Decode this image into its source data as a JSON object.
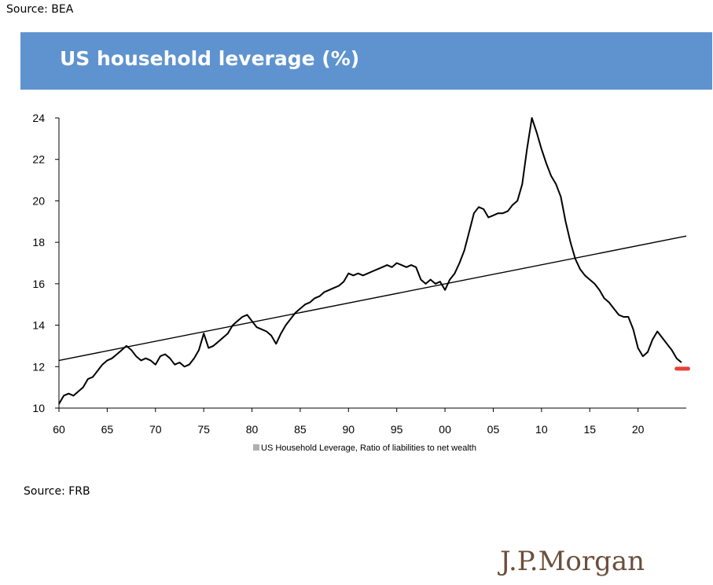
{
  "header": {
    "source_top": "Source: BEA",
    "title": "US household leverage (%)"
  },
  "footer": {
    "source_bottom": "Source: FRB",
    "logo": "J.P.Morgan"
  },
  "colors": {
    "banner": "#5f93cf",
    "series_line": "#000000",
    "trend_line": "#000000",
    "current_marker": "#e8403a",
    "logo": "#6b4e3b"
  },
  "chart_data": {
    "type": "line",
    "title": "",
    "xlabel": "",
    "ylabel": "",
    "xlim": [
      1960,
      2025
    ],
    "ylim": [
      10,
      24
    ],
    "x_ticks": [
      {
        "value": 1960,
        "label": "60"
      },
      {
        "value": 1965,
        "label": "65"
      },
      {
        "value": 1970,
        "label": "70"
      },
      {
        "value": 1975,
        "label": "75"
      },
      {
        "value": 1980,
        "label": "80"
      },
      {
        "value": 1985,
        "label": "85"
      },
      {
        "value": 1990,
        "label": "90"
      },
      {
        "value": 1995,
        "label": "95"
      },
      {
        "value": 2000,
        "label": "00"
      },
      {
        "value": 2005,
        "label": "05"
      },
      {
        "value": 2010,
        "label": "10"
      },
      {
        "value": 2015,
        "label": "15"
      },
      {
        "value": 2020,
        "label": "20"
      }
    ],
    "y_ticks": [
      10,
      12,
      14,
      16,
      18,
      20,
      22,
      24
    ],
    "grid": false,
    "legend": {
      "position": "bottom",
      "entries": [
        "US Household Leverage, Ratio of liabilities to net wealth"
      ]
    },
    "series": [
      {
        "name": "US Household Leverage, Ratio of liabilities to net wealth",
        "x": [
          1960.0,
          1960.5,
          1961.0,
          1961.5,
          1962.0,
          1962.5,
          1963.0,
          1963.5,
          1964.0,
          1964.5,
          1965.0,
          1965.5,
          1966.0,
          1966.5,
          1967.0,
          1967.5,
          1968.0,
          1968.5,
          1969.0,
          1969.5,
          1970.0,
          1970.5,
          1971.0,
          1971.5,
          1972.0,
          1972.5,
          1973.0,
          1973.5,
          1974.0,
          1974.5,
          1975.0,
          1975.5,
          1976.0,
          1976.5,
          1977.0,
          1977.5,
          1978.0,
          1978.5,
          1979.0,
          1979.5,
          1980.0,
          1980.5,
          1981.0,
          1981.5,
          1982.0,
          1982.5,
          1983.0,
          1983.5,
          1984.0,
          1984.5,
          1985.0,
          1985.5,
          1986.0,
          1986.5,
          1987.0,
          1987.5,
          1988.0,
          1988.5,
          1989.0,
          1989.5,
          1990.0,
          1990.5,
          1991.0,
          1991.5,
          1992.0,
          1992.5,
          1993.0,
          1993.5,
          1994.0,
          1994.5,
          1995.0,
          1995.5,
          1996.0,
          1996.5,
          1997.0,
          1997.5,
          1998.0,
          1998.5,
          1999.0,
          1999.5,
          2000.0,
          2000.5,
          2001.0,
          2001.5,
          2002.0,
          2002.5,
          2003.0,
          2003.5,
          2004.0,
          2004.5,
          2005.0,
          2005.5,
          2006.0,
          2006.5,
          2007.0,
          2007.5,
          2008.0,
          2008.5,
          2009.0,
          2009.5,
          2010.0,
          2010.5,
          2011.0,
          2011.5,
          2012.0,
          2012.5,
          2013.0,
          2013.5,
          2014.0,
          2014.5,
          2015.0,
          2015.5,
          2016.0,
          2016.5,
          2017.0,
          2017.5,
          2018.0,
          2018.5,
          2019.0,
          2019.5,
          2020.0,
          2020.5,
          2021.0,
          2021.5,
          2022.0,
          2022.5,
          2023.0,
          2023.5,
          2024.0,
          2024.5
        ],
        "values": [
          10.2,
          10.6,
          10.7,
          10.6,
          10.8,
          11.0,
          11.4,
          11.5,
          11.8,
          12.1,
          12.3,
          12.4,
          12.6,
          12.8,
          13.0,
          12.8,
          12.5,
          12.3,
          12.4,
          12.3,
          12.1,
          12.5,
          12.6,
          12.4,
          12.1,
          12.2,
          12.0,
          12.1,
          12.4,
          12.8,
          13.6,
          12.9,
          13.0,
          13.2,
          13.4,
          13.6,
          14.0,
          14.2,
          14.4,
          14.5,
          14.2,
          13.9,
          13.8,
          13.7,
          13.5,
          13.1,
          13.6,
          14.0,
          14.3,
          14.6,
          14.8,
          15.0,
          15.1,
          15.3,
          15.4,
          15.6,
          15.7,
          15.8,
          15.9,
          16.1,
          16.5,
          16.4,
          16.5,
          16.4,
          16.5,
          16.6,
          16.7,
          16.8,
          16.9,
          16.8,
          17.0,
          16.9,
          16.8,
          16.9,
          16.8,
          16.2,
          16.0,
          16.2,
          16.0,
          16.1,
          15.7,
          16.2,
          16.5,
          17.0,
          17.6,
          18.5,
          19.4,
          19.7,
          19.6,
          19.2,
          19.3,
          19.4,
          19.4,
          19.5,
          19.8,
          20.0,
          20.8,
          22.5,
          24.0,
          23.3,
          22.5,
          21.8,
          21.2,
          20.8,
          20.2,
          19.0,
          18.0,
          17.2,
          16.7,
          16.4,
          16.2,
          16.0,
          15.7,
          15.3,
          15.1,
          14.8,
          14.5,
          14.4,
          14.4,
          13.8,
          12.9,
          12.5,
          12.7,
          13.3,
          13.7,
          13.4,
          13.1,
          12.8,
          12.4,
          12.2
        ]
      }
    ],
    "trend_line": {
      "x": [
        1960,
        2025
      ],
      "values": [
        12.3,
        18.3
      ]
    },
    "current_marker": {
      "x": [
        2024.0,
        2025.2
      ],
      "values": [
        11.9,
        11.9
      ]
    }
  }
}
